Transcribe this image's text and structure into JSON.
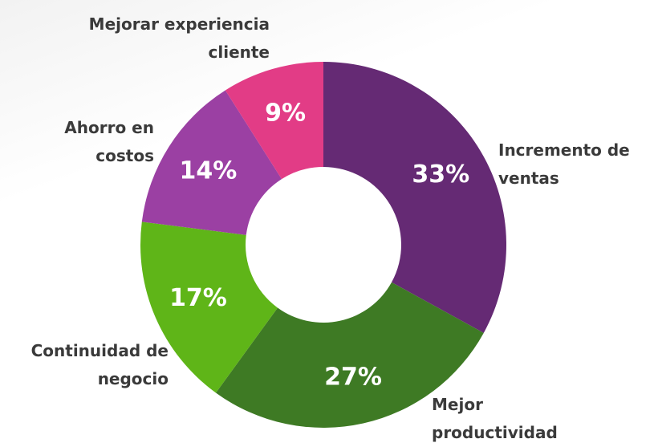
{
  "chart_data": {
    "type": "donut",
    "categories": [
      "Incremento de ventas",
      "Mejor productividad",
      "Continuidad de negocio",
      "Ahorro en costos",
      "Mejorar experiencia cliente"
    ],
    "values": [
      33,
      27,
      17,
      14,
      9
    ],
    "value_labels": [
      "33%",
      "27%",
      "17%",
      "14%",
      "9%"
    ],
    "colors": [
      "#652a74",
      "#3e7a24",
      "#5fb518",
      "#9b40a3",
      "#e23c86"
    ]
  }
}
